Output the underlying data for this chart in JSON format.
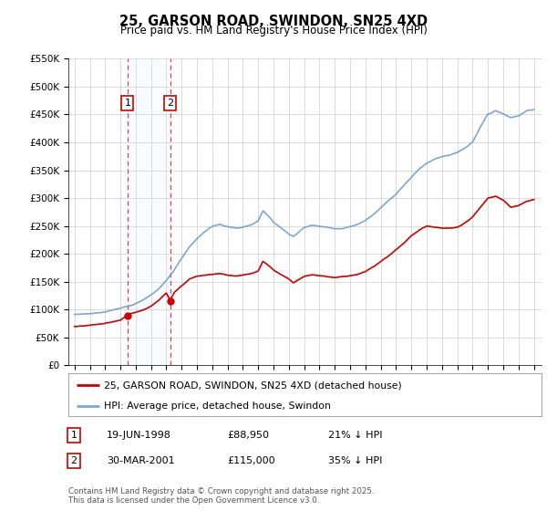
{
  "title": "25, GARSON ROAD, SWINDON, SN25 4XD",
  "subtitle": "Price paid vs. HM Land Registry's House Price Index (HPI)",
  "legend_label_red": "25, GARSON ROAD, SWINDON, SN25 4XD (detached house)",
  "legend_label_blue": "HPI: Average price, detached house, Swindon",
  "purchase1": {
    "label": "1",
    "date": "19-JUN-1998",
    "price": 88950,
    "hpi_diff": "21% ↓ HPI",
    "year": 1998.46
  },
  "purchase2": {
    "label": "2",
    "date": "30-MAR-2001",
    "price": 115000,
    "hpi_diff": "35% ↓ HPI",
    "year": 2001.24
  },
  "footnote": "Contains HM Land Registry data © Crown copyright and database right 2025.\nThis data is licensed under the Open Government Licence v3.0.",
  "ylim": [
    0,
    550000
  ],
  "yticks": [
    0,
    50000,
    100000,
    150000,
    200000,
    250000,
    300000,
    350000,
    400000,
    450000,
    500000,
    550000
  ],
  "xlim_start": 1994.6,
  "xlim_end": 2025.5,
  "background_color": "#ffffff",
  "grid_color": "#cccccc",
  "red_color": "#cc0000",
  "blue_color": "#6699cc",
  "shade_color": "#ddeeff",
  "vline_color": "#dd4444",
  "hpi_points": [
    [
      1995.0,
      88000
    ],
    [
      1995.5,
      89000
    ],
    [
      1996.0,
      90000
    ],
    [
      1996.5,
      91500
    ],
    [
      1997.0,
      93000
    ],
    [
      1997.5,
      96000
    ],
    [
      1998.0,
      99000
    ],
    [
      1998.5,
      103000
    ],
    [
      1999.0,
      108000
    ],
    [
      1999.5,
      115000
    ],
    [
      2000.0,
      124000
    ],
    [
      2000.5,
      135000
    ],
    [
      2001.0,
      150000
    ],
    [
      2001.5,
      168000
    ],
    [
      2002.0,
      190000
    ],
    [
      2002.5,
      210000
    ],
    [
      2003.0,
      225000
    ],
    [
      2003.5,
      238000
    ],
    [
      2004.0,
      248000
    ],
    [
      2004.5,
      252000
    ],
    [
      2005.0,
      248000
    ],
    [
      2005.5,
      246000
    ],
    [
      2006.0,
      248000
    ],
    [
      2006.5,
      252000
    ],
    [
      2007.0,
      260000
    ],
    [
      2007.3,
      278000
    ],
    [
      2007.8,
      265000
    ],
    [
      2008.0,
      258000
    ],
    [
      2008.5,
      248000
    ],
    [
      2009.0,
      238000
    ],
    [
      2009.3,
      233000
    ],
    [
      2009.5,
      237000
    ],
    [
      2010.0,
      248000
    ],
    [
      2010.5,
      252000
    ],
    [
      2011.0,
      250000
    ],
    [
      2011.5,
      248000
    ],
    [
      2012.0,
      246000
    ],
    [
      2012.5,
      247000
    ],
    [
      2013.0,
      250000
    ],
    [
      2013.5,
      255000
    ],
    [
      2014.0,
      262000
    ],
    [
      2014.5,
      272000
    ],
    [
      2015.0,
      285000
    ],
    [
      2015.5,
      298000
    ],
    [
      2016.0,
      310000
    ],
    [
      2016.5,
      325000
    ],
    [
      2017.0,
      340000
    ],
    [
      2017.5,
      355000
    ],
    [
      2018.0,
      365000
    ],
    [
      2018.5,
      372000
    ],
    [
      2019.0,
      376000
    ],
    [
      2019.5,
      378000
    ],
    [
      2020.0,
      382000
    ],
    [
      2020.5,
      390000
    ],
    [
      2021.0,
      400000
    ],
    [
      2021.5,
      428000
    ],
    [
      2022.0,
      452000
    ],
    [
      2022.5,
      458000
    ],
    [
      2023.0,
      452000
    ],
    [
      2023.5,
      445000
    ],
    [
      2024.0,
      448000
    ],
    [
      2024.5,
      458000
    ],
    [
      2025.0,
      460000
    ]
  ],
  "red_points": [
    [
      1995.0,
      68000
    ],
    [
      1995.5,
      69000
    ],
    [
      1996.0,
      70000
    ],
    [
      1996.5,
      71000
    ],
    [
      1997.0,
      73000
    ],
    [
      1997.5,
      76000
    ],
    [
      1998.0,
      79000
    ],
    [
      1998.46,
      88950
    ],
    [
      1999.0,
      93000
    ],
    [
      1999.5,
      98000
    ],
    [
      2000.0,
      105000
    ],
    [
      2000.5,
      115000
    ],
    [
      2001.0,
      128000
    ],
    [
      2001.24,
      115000
    ],
    [
      2001.5,
      128000
    ],
    [
      2002.0,
      140000
    ],
    [
      2002.5,
      152000
    ],
    [
      2003.0,
      158000
    ],
    [
      2003.5,
      160000
    ],
    [
      2004.0,
      162000
    ],
    [
      2004.5,
      163000
    ],
    [
      2005.0,
      160000
    ],
    [
      2005.5,
      158000
    ],
    [
      2006.0,
      160000
    ],
    [
      2006.5,
      163000
    ],
    [
      2007.0,
      168000
    ],
    [
      2007.3,
      185000
    ],
    [
      2007.8,
      175000
    ],
    [
      2008.0,
      170000
    ],
    [
      2008.5,
      162000
    ],
    [
      2009.0,
      155000
    ],
    [
      2009.3,
      148000
    ],
    [
      2009.5,
      152000
    ],
    [
      2010.0,
      160000
    ],
    [
      2010.5,
      163000
    ],
    [
      2011.0,
      162000
    ],
    [
      2011.5,
      160000
    ],
    [
      2012.0,
      158000
    ],
    [
      2012.5,
      160000
    ],
    [
      2013.0,
      162000
    ],
    [
      2013.5,
      165000
    ],
    [
      2014.0,
      170000
    ],
    [
      2014.5,
      178000
    ],
    [
      2015.0,
      188000
    ],
    [
      2015.5,
      198000
    ],
    [
      2016.0,
      210000
    ],
    [
      2016.5,
      222000
    ],
    [
      2017.0,
      235000
    ],
    [
      2017.5,
      245000
    ],
    [
      2018.0,
      252000
    ],
    [
      2018.5,
      250000
    ],
    [
      2019.0,
      248000
    ],
    [
      2019.5,
      248000
    ],
    [
      2020.0,
      250000
    ],
    [
      2020.5,
      258000
    ],
    [
      2021.0,
      268000
    ],
    [
      2021.5,
      285000
    ],
    [
      2022.0,
      302000
    ],
    [
      2022.5,
      305000
    ],
    [
      2023.0,
      298000
    ],
    [
      2023.5,
      285000
    ],
    [
      2024.0,
      288000
    ],
    [
      2024.5,
      295000
    ],
    [
      2025.0,
      298000
    ]
  ]
}
